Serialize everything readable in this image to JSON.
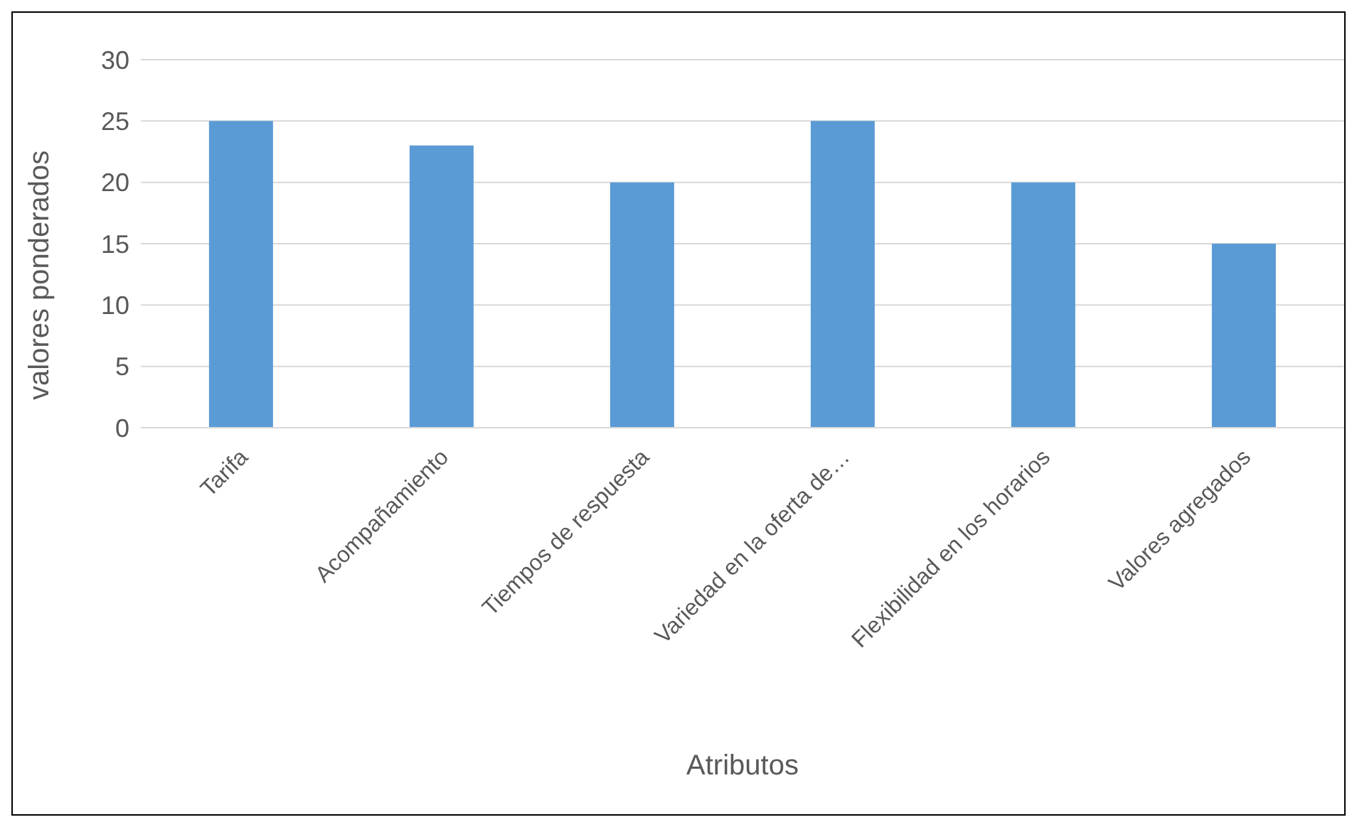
{
  "chart_data": {
    "type": "bar",
    "xlabel": "Atributos",
    "ylabel": "valores ponderados",
    "categories": [
      "Tarifa",
      "Acompañamiento",
      "Tiempos de respuesta",
      "Variedad en la oferta de…",
      "Flexibilidad en los horarios",
      "Valores agregados"
    ],
    "values": [
      25,
      23,
      20,
      25,
      20,
      15
    ],
    "color": "#5b9bd5",
    "ylim": [
      0,
      30
    ],
    "yticks": [
      0,
      5,
      10,
      15,
      20,
      25,
      30
    ],
    "grid": "y",
    "legend": false
  }
}
